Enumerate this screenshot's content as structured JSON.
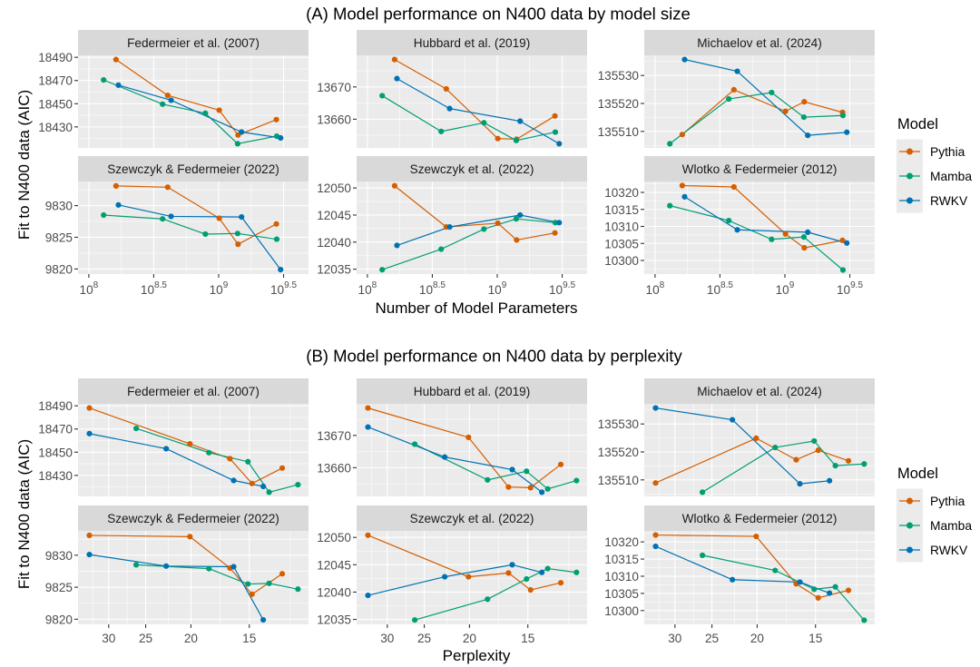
{
  "chart_data": [
    {
      "id": "A",
      "type": "line",
      "title": "(A) Model performance on N400 data by model size",
      "xlabel": "Number of Model Parameters",
      "ylabel": "Fit to N400 data (AIC)",
      "x_scale": "log10",
      "x_reversed": false,
      "xlim": [
        82600000,
        4920000000
      ],
      "xticks": [
        {
          "value": 100000000,
          "base": "10",
          "exp": "8"
        },
        {
          "value": 316227766,
          "base": "10",
          "exp": "8.5"
        },
        {
          "value": 1000000000,
          "base": "10",
          "exp": "9"
        },
        {
          "value": 3162277660,
          "base": "10",
          "exp": "9.5"
        }
      ],
      "x_minor_breaks": [
        56234133,
        177827941,
        562341325,
        1778279410,
        5623413252
      ],
      "grid": true,
      "facet_layout": "3 columns x 2 rows, free y scales",
      "legend": {
        "title": "Model",
        "position": "right",
        "entries": [
          {
            "name": "Pythia",
            "color": "#D55E00"
          },
          {
            "name": "Mamba",
            "color": "#009E73"
          },
          {
            "name": "RWKV",
            "color": "#0072B2"
          }
        ]
      },
      "series_x": {
        "Pythia": [
          162000000,
          405000000,
          1010000000,
          1410000000,
          2780000000
        ],
        "Mamba": [
          130000000,
          370000000,
          790000000,
          1400000000,
          2800000000
        ],
        "RWKV": [
          169000000,
          430000000,
          1500000000,
          3000000000
        ]
      },
      "panels": [
        {
          "title": "Federmeier et al. (2007)",
          "ylim": [
            18411.9,
            18491.7
          ],
          "yticks": [
            18430,
            18450,
            18470,
            18490
          ],
          "series": [
            {
              "name": "Pythia",
              "values": [
                18488.1,
                18457.2,
                18444.4,
                18423.0,
                18436.3
              ]
            },
            {
              "name": "Mamba",
              "values": [
                18470.5,
                18449.6,
                18441.8,
                18415.5,
                18422.0
              ]
            },
            {
              "name": "RWKV",
              "values": [
                18466.0,
                18453.0,
                18425.6,
                18420.5
              ]
            }
          ]
        },
        {
          "title": "Hubbard et al. (2019)",
          "ylim": [
            13651.1,
            13679.8
          ],
          "yticks": [
            13660,
            13670
          ],
          "series": [
            {
              "name": "Pythia",
              "values": [
                13678.5,
                13669.4,
                13654.0,
                13653.8,
                13661.0
              ]
            },
            {
              "name": "Mamba",
              "values": [
                13667.3,
                13656.2,
                13658.9,
                13653.4,
                13656.0
              ]
            },
            {
              "name": "RWKV",
              "values": [
                13672.6,
                13663.3,
                13659.4,
                13652.4
              ]
            }
          ]
        },
        {
          "title": "Michaelov et al. (2024)",
          "ylim": [
            135504.1,
            135537.2
          ],
          "yticks": [
            135510,
            135520,
            135530
          ],
          "series": [
            {
              "name": "Pythia",
              "values": [
                135508.9,
                135524.9,
                135517.2,
                135520.6,
                135516.8
              ]
            },
            {
              "name": "Mamba",
              "values": [
                135505.6,
                135521.6,
                135523.9,
                135515.1,
                135515.7
              ]
            },
            {
              "name": "RWKV",
              "values": [
                135535.7,
                135531.5,
                135508.6,
                135509.7
              ]
            }
          ]
        },
        {
          "title": "Szewczyk & Federmeier (2022)",
          "ylim": [
            9819.2,
            9833.8
          ],
          "yticks": [
            9820,
            9825,
            9830
          ],
          "series": [
            {
              "name": "Pythia",
              "values": [
                9833.1,
                9832.9,
                9828.0,
                9823.9,
                9827.1
              ]
            },
            {
              "name": "Mamba",
              "values": [
                9828.5,
                9827.9,
                9825.5,
                9825.6,
                9824.7
              ]
            },
            {
              "name": "RWKV",
              "values": [
                9830.1,
                9828.3,
                9828.2,
                9819.9
              ]
            }
          ]
        },
        {
          "title": "Szewczyk et al. (2022)",
          "ylim": [
            12034.1,
            12051.2
          ],
          "yticks": [
            12035,
            12040,
            12045,
            12050
          ],
          "series": [
            {
              "name": "Pythia",
              "values": [
                12050.4,
                12042.8,
                12043.5,
                12040.4,
                12041.7
              ]
            },
            {
              "name": "Mamba",
              "values": [
                12034.9,
                12038.7,
                12042.4,
                12044.3,
                12043.6
              ]
            },
            {
              "name": "RWKV",
              "values": [
                12039.4,
                12042.8,
                12045.0,
                12043.6
              ]
            }
          ]
        },
        {
          "title": "Wlotko & Federmeier (2012)",
          "ylim": [
            10296.0,
            10323.2
          ],
          "yticks": [
            10300,
            10305,
            10310,
            10315,
            10320
          ],
          "series": [
            {
              "name": "Pythia",
              "values": [
                10322.0,
                10321.6,
                10307.8,
                10303.7,
                10305.9
              ]
            },
            {
              "name": "Mamba",
              "values": [
                10316.1,
                10311.7,
                10306.2,
                10306.9,
                10297.2
              ]
            },
            {
              "name": "RWKV",
              "values": [
                10318.7,
                10309.0,
                10308.3,
                10305.1
              ]
            }
          ]
        }
      ]
    },
    {
      "id": "B",
      "type": "line",
      "title": "(B) Model performance on N400 data by perplexity",
      "xlabel": "Perplexity",
      "ylabel": "Fit to N400 data (AIC)",
      "x_scale": "log",
      "x_reversed": true,
      "xlim": [
        11.2,
        34.9
      ],
      "xticks": [
        {
          "value": 30,
          "label": "30"
        },
        {
          "value": 25,
          "label": "25"
        },
        {
          "value": 20,
          "label": "20"
        },
        {
          "value": 15,
          "label": "15"
        }
      ],
      "x_minor_breaks": [
        32.4,
        27.39,
        22.36,
        17.32,
        12.25
      ],
      "grid": true,
      "facet_layout": "3 columns x 2 rows, free y scales",
      "legend": {
        "title": "Model",
        "position": "right",
        "entries": [
          {
            "name": "Pythia",
            "color": "#D55E00"
          },
          {
            "name": "Mamba",
            "color": "#009E73"
          },
          {
            "name": "RWKV",
            "color": "#0072B2"
          }
        ]
      },
      "series_x": {
        "Pythia": [
          33.0,
          20.1,
          16.5,
          14.8,
          12.75
        ],
        "Mamba": [
          26.2,
          18.3,
          15.1,
          13.6,
          11.8
        ],
        "RWKV": [
          33.0,
          22.6,
          16.2,
          14.0
        ]
      },
      "panels": [
        {
          "title": "Federmeier et al. (2007)",
          "ylim": [
            18411.9,
            18491.7
          ],
          "yticks": [
            18430,
            18450,
            18470,
            18490
          ],
          "series": [
            {
              "name": "Pythia",
              "values": [
                18488.1,
                18457.2,
                18444.4,
                18423.0,
                18436.3
              ]
            },
            {
              "name": "Mamba",
              "values": [
                18470.5,
                18449.6,
                18441.8,
                18415.5,
                18422.0
              ]
            },
            {
              "name": "RWKV",
              "values": [
                18466.0,
                18453.0,
                18425.6,
                18420.5
              ]
            }
          ]
        },
        {
          "title": "Hubbard et al. (2019)",
          "ylim": [
            13651.1,
            13679.8
          ],
          "yticks": [
            13660,
            13670
          ],
          "series": [
            {
              "name": "Pythia",
              "values": [
                13678.5,
                13669.4,
                13654.0,
                13653.8,
                13661.0
              ]
            },
            {
              "name": "Mamba",
              "values": [
                13667.3,
                13656.2,
                13658.9,
                13653.4,
                13656.0
              ]
            },
            {
              "name": "RWKV",
              "values": [
                13672.6,
                13663.3,
                13659.4,
                13652.4
              ]
            }
          ]
        },
        {
          "title": "Michaelov et al. (2024)",
          "ylim": [
            135504.1,
            135537.2
          ],
          "yticks": [
            135510,
            135520,
            135530
          ],
          "series": [
            {
              "name": "Pythia",
              "values": [
                135508.9,
                135524.9,
                135517.2,
                135520.6,
                135516.8
              ]
            },
            {
              "name": "Mamba",
              "values": [
                135505.6,
                135521.6,
                135523.9,
                135515.1,
                135515.7
              ]
            },
            {
              "name": "RWKV",
              "values": [
                135535.7,
                135531.5,
                135508.6,
                135509.7
              ]
            }
          ]
        },
        {
          "title": "Szewczyk & Federmeier (2022)",
          "ylim": [
            9819.2,
            9833.8
          ],
          "yticks": [
            9820,
            9825,
            9830
          ],
          "series": [
            {
              "name": "Pythia",
              "values": [
                9833.1,
                9832.9,
                9828.0,
                9823.9,
                9827.1
              ]
            },
            {
              "name": "Mamba",
              "values": [
                9828.5,
                9827.9,
                9825.5,
                9825.6,
                9824.7
              ]
            },
            {
              "name": "RWKV",
              "values": [
                9830.1,
                9828.3,
                9828.2,
                9819.9
              ]
            }
          ]
        },
        {
          "title": "Szewczyk et al. (2022)",
          "ylim": [
            12034.1,
            12051.2
          ],
          "yticks": [
            12035,
            12040,
            12045,
            12050
          ],
          "series": [
            {
              "name": "Pythia",
              "values": [
                12050.4,
                12042.8,
                12043.5,
                12040.4,
                12041.7
              ]
            },
            {
              "name": "Mamba",
              "values": [
                12034.9,
                12038.7,
                12042.4,
                12044.3,
                12043.6
              ]
            },
            {
              "name": "RWKV",
              "values": [
                12039.4,
                12042.8,
                12045.0,
                12043.6
              ]
            }
          ]
        },
        {
          "title": "Wlotko & Federmeier (2012)",
          "ylim": [
            10296.0,
            10323.2
          ],
          "yticks": [
            10300,
            10305,
            10310,
            10315,
            10320
          ],
          "series": [
            {
              "name": "Pythia",
              "values": [
                10322.0,
                10321.6,
                10307.8,
                10303.7,
                10305.9
              ]
            },
            {
              "name": "Mamba",
              "values": [
                10316.1,
                10311.7,
                10306.2,
                10306.9,
                10297.2
              ]
            },
            {
              "name": "RWKV",
              "values": [
                10318.7,
                10309.0,
                10308.3,
                10305.1
              ]
            }
          ]
        }
      ]
    }
  ]
}
